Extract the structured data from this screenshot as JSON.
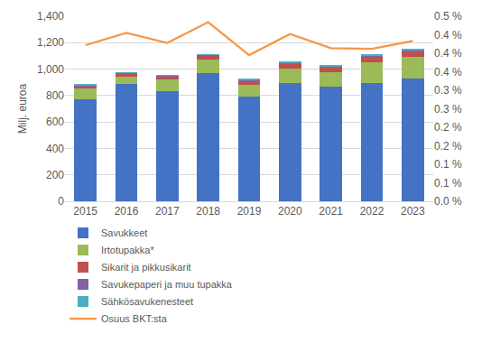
{
  "chart_data": {
    "type": "bar",
    "stacked": true,
    "grid": true,
    "legend": "bottom",
    "y_label": "Milj. euroa",
    "categories": [
      "2015",
      "2016",
      "2017",
      "2018",
      "2019",
      "2020",
      "2021",
      "2022",
      "2023"
    ],
    "ylim": [
      0,
      1400
    ],
    "yticks": [
      0,
      200,
      400,
      600,
      800,
      {
        "value": 1000,
        "label": "1,000"
      },
      {
        "value": 1200,
        "label": "1,200"
      },
      {
        "value": 1400,
        "label": "1,400"
      }
    ],
    "y2lim": [
      0,
      0.5
    ],
    "y2ticks": [
      {
        "value": 0,
        "label": "0.0 %"
      },
      {
        "value": 0.05,
        "label": "0.1 %"
      },
      {
        "value": 0.1,
        "label": "0.1 %"
      },
      {
        "value": 0.15,
        "label": "0.2 %"
      },
      {
        "value": 0.2,
        "label": "0.2 %"
      },
      {
        "value": 0.25,
        "label": "0.3 %"
      },
      {
        "value": 0.3,
        "label": "0.3 %"
      },
      {
        "value": 0.35,
        "label": "0.4 %"
      },
      {
        "value": 0.4,
        "label": "0.4 %"
      },
      {
        "value": 0.45,
        "label": "0.4 %"
      },
      {
        "value": 0.5,
        "label": "0.5 %"
      }
    ],
    "series": [
      {
        "name": "Savukkeet",
        "type": "bar",
        "color": "#4472c4",
        "values": [
          775,
          885,
          835,
          968,
          795,
          893,
          865,
          898,
          930
        ]
      },
      {
        "name": "Irtotupakka*",
        "type": "bar",
        "color": "#9bbb59",
        "values": [
          78,
          60,
          85,
          105,
          85,
          110,
          115,
          155,
          165
        ]
      },
      {
        "name": "Sikarit ja pikkusikarit",
        "type": "bar",
        "color": "#c0504d",
        "values": [
          20,
          23,
          25,
          30,
          35,
          40,
          35,
          45,
          45
        ]
      },
      {
        "name": "Savukepaperi ja muu tupakka",
        "type": "bar",
        "color": "#8064a2",
        "values": [
          6,
          5,
          5,
          6,
          6,
          7,
          6,
          7,
          7
        ]
      },
      {
        "name": "Sähkösavukenesteet",
        "type": "bar",
        "color": "#4bacc6",
        "values": [
          3,
          3,
          3,
          4,
          4,
          6,
          6,
          7,
          6
        ]
      },
      {
        "name": "Osuus BKT:sta",
        "type": "line",
        "axis": "y2",
        "color": "#f79646",
        "values": [
          0.422,
          0.455,
          0.428,
          0.484,
          0.395,
          0.452,
          0.414,
          0.412,
          0.433
        ]
      }
    ]
  }
}
